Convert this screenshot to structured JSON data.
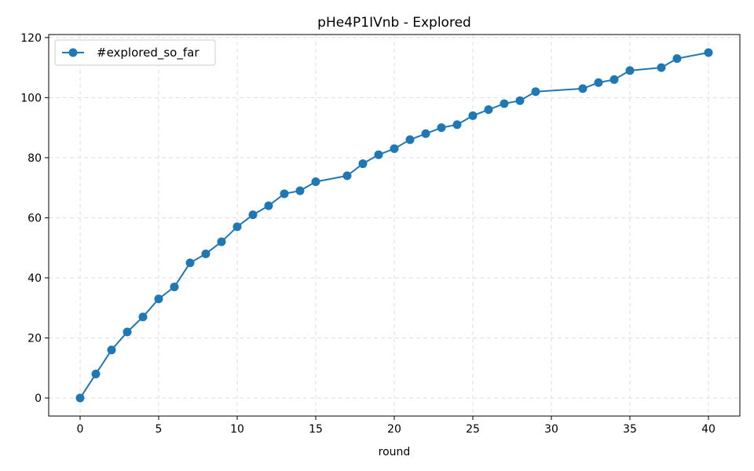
{
  "chart_data": {
    "type": "line",
    "title": "pHe4P1IVnb - Explored",
    "xlabel": "round",
    "ylabel": "",
    "xlim": [
      -2,
      42
    ],
    "ylim": [
      -6,
      121
    ],
    "xticks": [
      0,
      5,
      10,
      15,
      20,
      25,
      30,
      35,
      40
    ],
    "yticks": [
      0,
      20,
      40,
      60,
      80,
      100,
      120
    ],
    "grid": true,
    "legend_position": "top-left",
    "series": [
      {
        "name": "#explored_so_far",
        "color": "#1f77b4",
        "marker": "circle",
        "x": [
          0,
          1,
          2,
          3,
          4,
          5,
          6,
          7,
          8,
          9,
          10,
          11,
          12,
          13,
          14,
          15,
          17,
          18,
          19,
          20,
          21,
          22,
          23,
          24,
          25,
          26,
          27,
          28,
          29,
          32,
          33,
          34,
          35,
          37,
          38,
          40
        ],
        "y": [
          0,
          8,
          16,
          22,
          27,
          33,
          37,
          45,
          48,
          52,
          57,
          61,
          64,
          68,
          69,
          72,
          74,
          78,
          81,
          83,
          86,
          88,
          90,
          91,
          94,
          96,
          98,
          99,
          102,
          103,
          105,
          106,
          109,
          110,
          113,
          115
        ]
      }
    ]
  }
}
